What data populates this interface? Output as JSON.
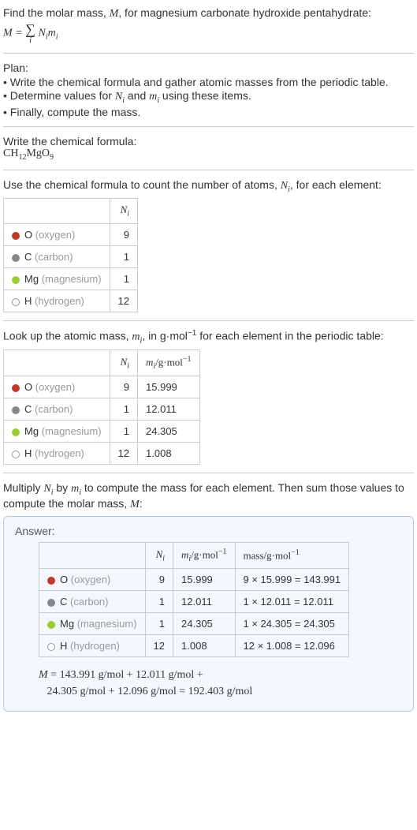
{
  "intro": {
    "line1_prefix": "Find the molar mass, ",
    "line1_var": "M",
    "line1_suffix": ", for magnesium carbonate hydroxide pentahydrate:",
    "eq_lhs": "M",
    "eq_eq": " = ",
    "eq_idx": "i",
    "eq_rhs_N": "N",
    "eq_rhs_i1": "i",
    "eq_rhs_m": "m",
    "eq_rhs_i2": "i"
  },
  "plan": {
    "title": "Plan:",
    "b1": "• Write the chemical formula and gather atomic masses from the periodic table.",
    "b2_a": "• Determine values for ",
    "b2_N": "N",
    "b2_i": "i",
    "b2_mid": " and ",
    "b2_m": "m",
    "b2_i2": "i",
    "b2_end": " using these items.",
    "b3": "• Finally, compute the mass."
  },
  "chem": {
    "title": "Write the chemical formula:",
    "p1": "CH",
    "s1": "12",
    "p2": "MgO",
    "s2": "9"
  },
  "count": {
    "text_a": "Use the chemical formula to count the number of atoms, ",
    "text_N": "N",
    "text_i": "i",
    "text_b": ", for each element:",
    "hdr_N": "N",
    "hdr_i": "i",
    "rows": [
      {
        "dot": "dot-o",
        "sym": "O",
        "name": "(oxygen)",
        "n": "9"
      },
      {
        "dot": "dot-c",
        "sym": "C",
        "name": "(carbon)",
        "n": "1"
      },
      {
        "dot": "dot-mg",
        "sym": "Mg",
        "name": "(magnesium)",
        "n": "1"
      },
      {
        "dot": "dot-h",
        "sym": "H",
        "name": "(hydrogen)",
        "n": "12"
      }
    ]
  },
  "lookup": {
    "text_a": "Look up the atomic mass, ",
    "text_m": "m",
    "text_i": "i",
    "text_b": ", in g·mol",
    "text_exp": "−1",
    "text_c": " for each element in the periodic table:",
    "hdr2_m": "m",
    "hdr2_i": "i",
    "hdr2_unit": "/g·mol",
    "hdr2_exp": "−1",
    "rows": [
      {
        "dot": "dot-o",
        "sym": "O",
        "name": "(oxygen)",
        "n": "9",
        "m": "15.999"
      },
      {
        "dot": "dot-c",
        "sym": "C",
        "name": "(carbon)",
        "n": "1",
        "m": "12.011"
      },
      {
        "dot": "dot-mg",
        "sym": "Mg",
        "name": "(magnesium)",
        "n": "1",
        "m": "24.305"
      },
      {
        "dot": "dot-h",
        "sym": "H",
        "name": "(hydrogen)",
        "n": "12",
        "m": "1.008"
      }
    ]
  },
  "multiply": {
    "text_a": "Multiply ",
    "text_N": "N",
    "text_i1": "i",
    "text_b": " by ",
    "text_m": "m",
    "text_i2": "i",
    "text_c": " to compute the mass for each element. Then sum those values to compute the molar mass, ",
    "text_M": "M",
    "text_d": ":"
  },
  "answer": {
    "label": "Answer:",
    "hdr_mass": "mass/g·mol",
    "hdr_mass_exp": "−1",
    "rows": [
      {
        "dot": "dot-o",
        "sym": "O",
        "name": "(oxygen)",
        "n": "9",
        "m": "15.999",
        "mass": "9 × 15.999 = 143.991"
      },
      {
        "dot": "dot-c",
        "sym": "C",
        "name": "(carbon)",
        "n": "1",
        "m": "12.011",
        "mass": "1 × 12.011 = 12.011"
      },
      {
        "dot": "dot-mg",
        "sym": "Mg",
        "name": "(magnesium)",
        "n": "1",
        "m": "24.305",
        "mass": "1 × 24.305 = 24.305"
      },
      {
        "dot": "dot-h",
        "sym": "H",
        "name": "(hydrogen)",
        "n": "12",
        "m": "1.008",
        "mass": "12 × 1.008 = 12.096"
      }
    ],
    "final_l1_a": "M",
    "final_l1_b": " = 143.991 g/mol + 12.011 g/mol + ",
    "final_l2": "24.305 g/mol + 12.096 g/mol = 192.403 g/mol"
  },
  "colors": {
    "o": "#c0392b",
    "c": "#888888",
    "mg": "#9acd32",
    "h_border": "#999999",
    "box_border": "#b8c8dc",
    "box_bg": "#f4f8fc"
  }
}
